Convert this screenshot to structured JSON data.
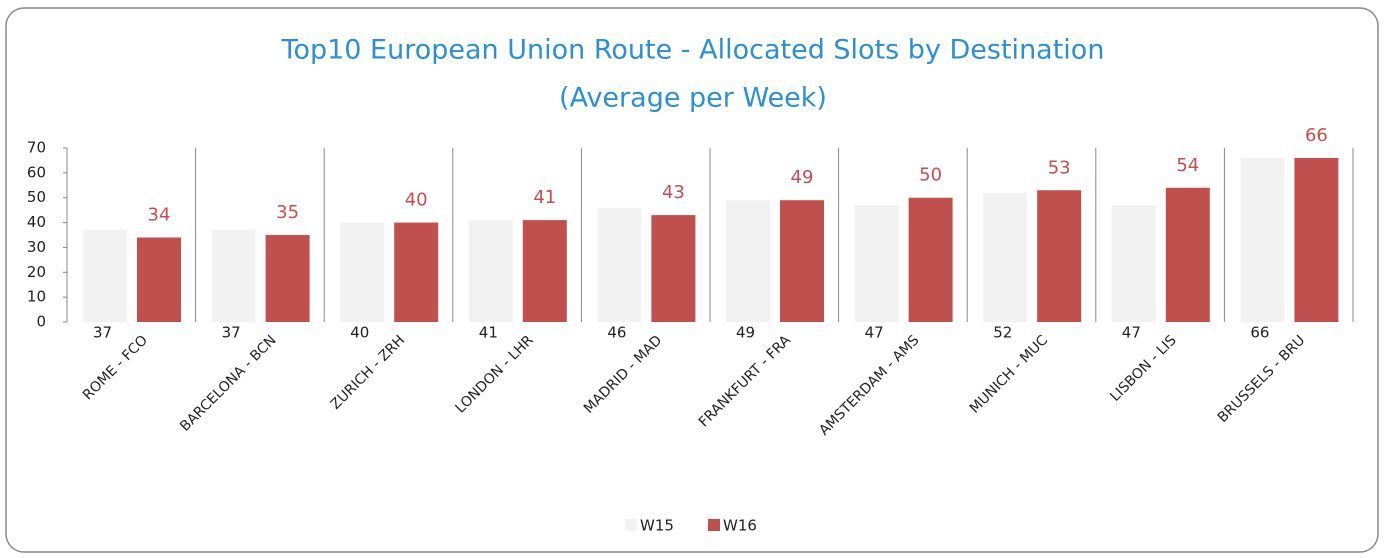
{
  "chart_data": {
    "type": "bar",
    "title": [
      "Top10 European Union Route - Allocated Slots by Destination",
      "(Average per Week)"
    ],
    "categories": [
      "ROME - FCO",
      "BARCELONA - BCN",
      "ZURICH - ZRH",
      "LONDON - LHR",
      "MADRID - MAD",
      "FRANKFURT - FRA",
      "AMSTERDAM - AMS",
      "MUNICH - MUC",
      "LISBON - LIS",
      "BRUSSELS - BRU"
    ],
    "series": [
      {
        "name": "W15",
        "color": "#f2f2f2",
        "values": [
          37,
          37,
          40,
          41,
          46,
          49,
          47,
          52,
          47,
          66
        ]
      },
      {
        "name": "W16",
        "color": "#c0504d",
        "values": [
          34,
          35,
          40,
          41,
          43,
          49,
          50,
          53,
          54,
          66
        ]
      }
    ],
    "ylim": [
      0,
      70
    ],
    "yticks": [
      0,
      10,
      20,
      30,
      40,
      50,
      60,
      70
    ],
    "legend": "bottom"
  }
}
